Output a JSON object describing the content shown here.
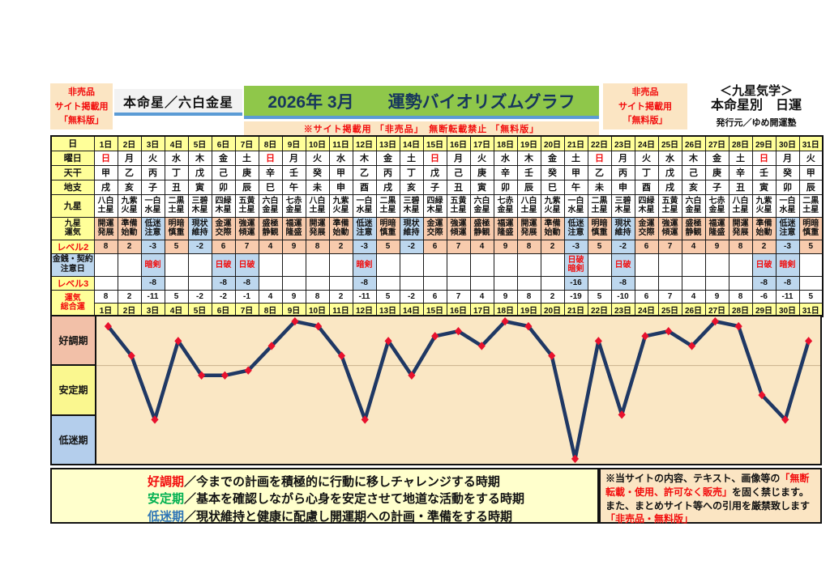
{
  "header": {
    "badge_left": [
      "非売品",
      "サイト掲載用",
      "「無料版」"
    ],
    "honmeisei": "本命星／六白金星",
    "year_month": "2026年 3月",
    "title": "運勢バイオリズムグラフ",
    "subtitle": "※サイト掲載用 「非売品」　無断転載禁止 「無料版」",
    "badge_right": [
      "非売品",
      "サイト掲載用",
      "「無料版」"
    ],
    "school": "＜九星気学＞",
    "subheading": "本命星別　日運",
    "publisher": "発行元／ゆめ開運塾"
  },
  "table": {
    "row_labels": {
      "day": "日",
      "weekday": "曜日",
      "tenkan": "天干",
      "chishi": "地支",
      "kyusei": "九星",
      "unki": "九星\n運気",
      "level2": "レベル2",
      "caution": "金銭・契約\n注意日",
      "level3": "レベル3",
      "total": "運気\n総合運"
    },
    "days": [
      "1日",
      "2日",
      "3日",
      "4日",
      "5日",
      "6日",
      "7日",
      "8日",
      "9日",
      "10日",
      "11日",
      "12日",
      "13日",
      "14日",
      "15日",
      "16日",
      "17日",
      "18日",
      "19日",
      "20日",
      "21日",
      "22日",
      "23日",
      "24日",
      "25日",
      "26日",
      "27日",
      "28日",
      "29日",
      "30日",
      "31日"
    ],
    "weekdays": [
      "日",
      "月",
      "火",
      "水",
      "木",
      "金",
      "土",
      "日",
      "月",
      "火",
      "水",
      "木",
      "金",
      "土",
      "日",
      "月",
      "火",
      "水",
      "木",
      "金",
      "土",
      "日",
      "月",
      "火",
      "水",
      "木",
      "金",
      "土",
      "日",
      "月",
      "火"
    ],
    "tenkan": [
      "甲",
      "乙",
      "丙",
      "丁",
      "戊",
      "己",
      "庚",
      "辛",
      "壬",
      "癸",
      "甲",
      "乙",
      "丙",
      "丁",
      "戊",
      "己",
      "庚",
      "辛",
      "壬",
      "癸",
      "甲",
      "乙",
      "丙",
      "丁",
      "戊",
      "己",
      "庚",
      "辛",
      "壬",
      "癸",
      "甲"
    ],
    "chishi": [
      "戌",
      "亥",
      "子",
      "丑",
      "寅",
      "卯",
      "辰",
      "巳",
      "午",
      "未",
      "申",
      "酉",
      "戌",
      "亥",
      "子",
      "丑",
      "寅",
      "卯",
      "辰",
      "巳",
      "午",
      "未",
      "申",
      "酉",
      "戌",
      "亥",
      "子",
      "丑",
      "寅",
      "卯",
      "辰"
    ],
    "kyusei": [
      "八白\n土星",
      "九紫\n火星",
      "一白\n水星",
      "二黒\n土星",
      "三碧\n木星",
      "四緑\n木星",
      "五黄\n土星",
      "六白\n金星",
      "七赤\n金星",
      "八白\n土星",
      "九紫\n火星",
      "一白\n水星",
      "二黒\n土星",
      "三碧\n木星",
      "四緑\n木星",
      "五黄\n土星",
      "六白\n金星",
      "七赤\n金星",
      "八白\n土星",
      "九紫\n火星",
      "一白\n水星",
      "二黒\n土星",
      "三碧\n木星",
      "四緑\n木星",
      "五黄\n土星",
      "六白\n金星",
      "七赤\n金星",
      "八白\n土星",
      "九紫\n火星",
      "一白\n水星",
      "二黒\n土星"
    ],
    "unki": [
      "開運\n発展",
      "準備\n始動",
      "低迷\n注意",
      "明暗\n慎重",
      "現状\n維持",
      "金運\n交際",
      "強運\n傾運",
      "盛極\n静観",
      "福運\n隆盛",
      "開運\n発展",
      "準備\n始動",
      "低迷\n注意",
      "明暗\n慎重",
      "現状\n維持",
      "金運\n交際",
      "強運\n傾運",
      "盛極\n静観",
      "福運\n隆盛",
      "開運\n発展",
      "準備\n始動",
      "低迷\n注意",
      "明暗\n慎重",
      "現状\n維持",
      "金運\n交際",
      "強運\n傾運",
      "盛極\n静観",
      "福運\n隆盛",
      "開運\n発展",
      "準備\n始動",
      "低迷\n注意",
      "明暗\n慎重"
    ],
    "level2": [
      8,
      2,
      -3,
      5,
      -2,
      6,
      7,
      4,
      9,
      8,
      2,
      -3,
      5,
      -2,
      6,
      7,
      4,
      9,
      8,
      2,
      -3,
      5,
      -2,
      6,
      7,
      4,
      9,
      8,
      2,
      -3,
      5
    ],
    "caution": [
      "",
      "",
      "暗剣",
      "",
      "",
      "日破",
      "日破",
      "",
      "",
      "",
      "",
      "暗剣",
      "",
      "",
      "",
      "",
      "",
      "",
      "",
      "",
      "日破\n暗剣",
      "",
      "日破",
      "",
      "",
      "",
      "",
      "",
      "日破",
      "暗剣",
      ""
    ],
    "level3": [
      "",
      "",
      -8,
      "",
      "",
      -8,
      -8,
      "",
      "",
      "",
      "",
      -8,
      "",
      "",
      "",
      "",
      "",
      "",
      "",
      "",
      -16,
      "",
      -8,
      "",
      "",
      "",
      "",
      "",
      -8,
      -8,
      ""
    ],
    "total": [
      8,
      2,
      -11,
      5,
      -2,
      -2,
      -1,
      4,
      9,
      8,
      2,
      -11,
      5,
      -2,
      6,
      7,
      4,
      9,
      8,
      2,
      -19,
      5,
      -10,
      6,
      7,
      4,
      9,
      8,
      -6,
      -11,
      5
    ]
  },
  "chart_data": {
    "type": "line",
    "title": "運勢バイオリズムグラフ 2026年3月",
    "x_labels": [
      "1日",
      "2日",
      "3日",
      "4日",
      "5日",
      "6日",
      "7日",
      "8日",
      "9日",
      "10日",
      "11日",
      "12日",
      "13日",
      "14日",
      "15日",
      "16日",
      "17日",
      "18日",
      "19日",
      "20日",
      "21日",
      "22日",
      "23日",
      "24日",
      "25日",
      "26日",
      "27日",
      "28日",
      "29日",
      "30日",
      "31日"
    ],
    "values": [
      8,
      2,
      -11,
      5,
      -2,
      -2,
      -1,
      4,
      9,
      8,
      2,
      -11,
      5,
      -2,
      6,
      7,
      4,
      9,
      8,
      2,
      -19,
      5,
      -10,
      6,
      7,
      4,
      9,
      8,
      -6,
      -11,
      5
    ],
    "ylim": [
      -20,
      10
    ],
    "gridline_at": 0,
    "bands": [
      {
        "label": "好調期",
        "range": [
          0,
          10
        ],
        "color": "#F2C0A8"
      },
      {
        "label": "安定期",
        "range": [
          -10,
          0
        ],
        "color": "#FAF78F"
      },
      {
        "label": "低迷期",
        "range": [
          -20,
          -10
        ],
        "color": "#B4CEEC"
      }
    ],
    "line_color": "#1F3864",
    "marker_color": "#E8112D",
    "plot_bg": "#FAE7C4"
  },
  "legend": {
    "items": [
      {
        "term": "好調期",
        "color": "#F20D0D",
        "desc": "／今までの計画を積極的に行動に移しチャレンジする時期"
      },
      {
        "term": "安定期",
        "color": "#00B050",
        "desc": "／基本を確認しながら心身を安定させて地道な活動をする時期"
      },
      {
        "term": "低迷期",
        "color": "#2E75B6",
        "desc": "／現状維持と健康に配慮し開運期への計画・準備をする時期"
      }
    ]
  },
  "notice": {
    "segments": [
      {
        "text": "※当サイトの内容、テキスト、画像等の",
        "red": false
      },
      {
        "text": "「無断転載・使用、許可なく販売」",
        "red": true
      },
      {
        "text": "を固く禁じます。また、まとめサイト等への引用を厳禁致します ",
        "red": false
      },
      {
        "text": "「非売品・無料版」",
        "red": true
      }
    ]
  },
  "colors": {
    "banner_green": "#8FC74A",
    "underline_blue": "#5B9BD5",
    "title_navy": "#17365D",
    "cream": "#FBE5C3",
    "header_yellow": "#FFFF99",
    "cell_positive_peach": "#F8CBAD",
    "cell_negative_blue": "#BDD7EE",
    "accent_red": "#F20D0D"
  }
}
